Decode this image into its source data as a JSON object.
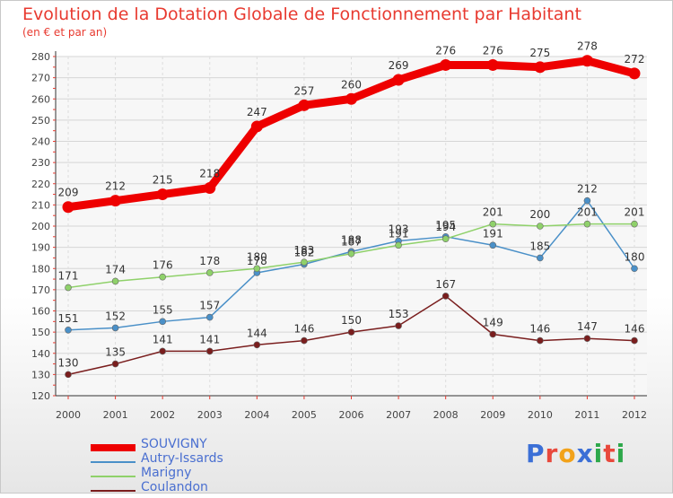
{
  "header": {
    "title": "Evolution de la Dotation Globale de Fonctionnement par Habitant",
    "subtitle": "(en € et par an)"
  },
  "logo": {
    "text": "Proxiti",
    "colors": [
      "#3b6fd6",
      "#e8483c",
      "#f2a21a",
      "#3b6fd6",
      "#2da84a",
      "#e8483c",
      "#2da84a"
    ]
  },
  "chart_data": {
    "type": "line",
    "x": [
      "2000",
      "2001",
      "2002",
      "2003",
      "2004",
      "2005",
      "2006",
      "2007",
      "2008",
      "2009",
      "2010",
      "2011",
      "2012"
    ],
    "ylim": [
      120,
      280
    ],
    "yticks": [
      120,
      130,
      140,
      150,
      160,
      170,
      180,
      190,
      200,
      210,
      220,
      230,
      240,
      250,
      260,
      270,
      280
    ],
    "grid": true,
    "legend_position": "bottom-left",
    "series": [
      {
        "name": "SOUVIGNY",
        "color": "#ee0000",
        "values": [
          209,
          212,
          215,
          218,
          247,
          257,
          260,
          269,
          276,
          276,
          275,
          278,
          272
        ]
      },
      {
        "name": "Autry-Issards",
        "color": "#4a90c8",
        "values": [
          151,
          152,
          155,
          157,
          178,
          182,
          188,
          193,
          195,
          191,
          185,
          212,
          180
        ]
      },
      {
        "name": "Marigny",
        "color": "#8fd16a",
        "values": [
          171,
          174,
          176,
          178,
          180,
          183,
          187,
          191,
          194,
          201,
          200,
          201,
          201
        ]
      },
      {
        "name": "Coulandon",
        "color": "#7a1e1e",
        "values": [
          130,
          135,
          141,
          141,
          144,
          146,
          150,
          153,
          167,
          149,
          146,
          147,
          146
        ]
      }
    ]
  }
}
